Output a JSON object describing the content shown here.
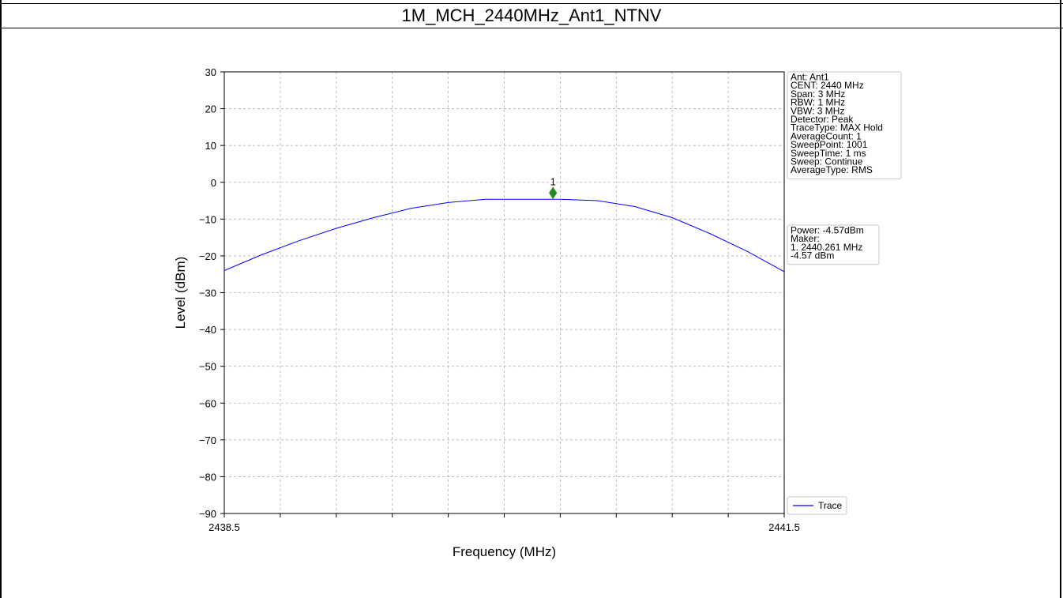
{
  "page": {
    "title": "1M_MCH_2440MHz_Ant1_NTNV"
  },
  "chart_data": {
    "type": "line",
    "xlabel": "Frequency (MHz)",
    "ylabel": "Level (dBm)",
    "xlim": [
      2438.5,
      2441.5
    ],
    "ylim": [
      -90,
      30
    ],
    "x_tick_labels": [
      "2438.5",
      "2441.5"
    ],
    "x_minor_ticks": [
      2438.8,
      2439.1,
      2439.4,
      2439.7,
      2440.0,
      2440.3,
      2440.6,
      2440.9,
      2441.2
    ],
    "y_ticks": [
      30,
      20,
      10,
      0,
      -10,
      -20,
      -30,
      -40,
      -50,
      -60,
      -70,
      -80,
      -90
    ],
    "y_tick_labels": [
      "30",
      "20",
      "10",
      "0",
      "−10",
      "−20",
      "−30",
      "−40",
      "−50",
      "−60",
      "−70",
      "−80",
      "−90"
    ],
    "grid": true,
    "legend_position": "bottom-right",
    "series": [
      {
        "name": "Trace",
        "color": "#0000ff",
        "x": [
          2438.5,
          2438.7,
          2438.9,
          2439.1,
          2439.3,
          2439.5,
          2439.7,
          2439.9,
          2440.1,
          2440.3,
          2440.5,
          2440.7,
          2440.9,
          2441.1,
          2441.3,
          2441.5
        ],
        "y": [
          -24.0,
          -19.7,
          -15.9,
          -12.5,
          -9.6,
          -7.1,
          -5.5,
          -4.6,
          -4.6,
          -4.6,
          -5.0,
          -6.6,
          -9.6,
          -13.9,
          -18.7,
          -24.3
        ]
      }
    ],
    "marker": {
      "label": "1",
      "x": 2440.261,
      "y": -2.9,
      "color": "#228b22"
    },
    "info_box": [
      "Ant: Ant1",
      "CENT: 2440 MHz",
      "Span: 3 MHz",
      "RBW: 1 MHz",
      "VBW: 3 MHz",
      "Detector: Peak",
      "TraceType: MAX Hold",
      "AverageCount: 1",
      "SweepPoint: 1001",
      "SweepTime: 1 ms",
      "Sweep: Continue",
      "AverageType: RMS"
    ],
    "result_box": [
      "Power: -4.57dBm",
      "Maker:",
      "1. 2440.261 MHz",
      "    -4.57 dBm"
    ]
  }
}
